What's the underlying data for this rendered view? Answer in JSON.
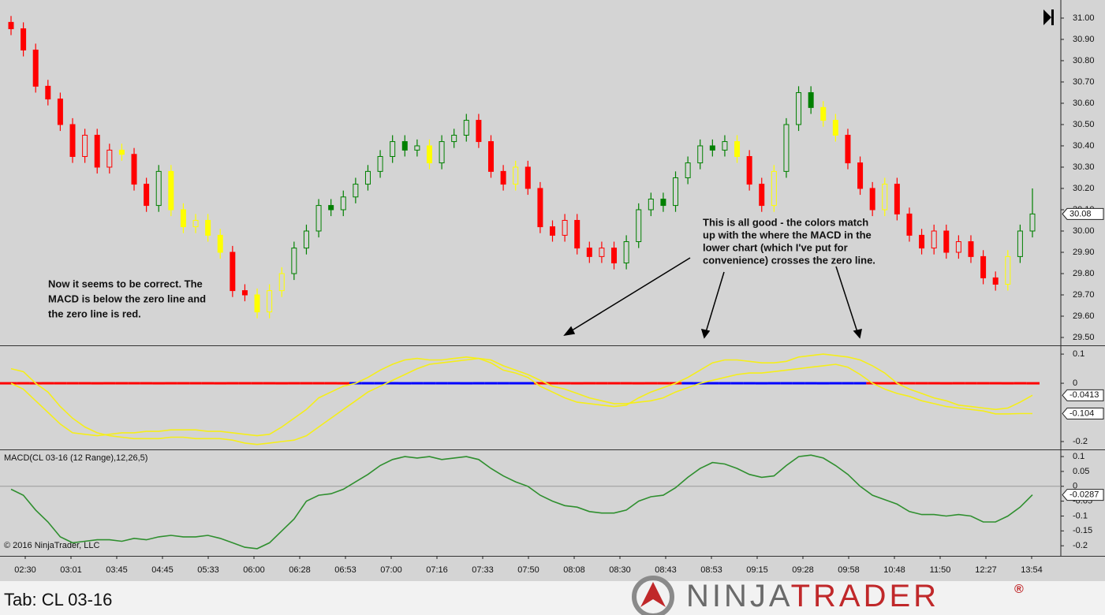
{
  "chart_data": [
    {
      "type": "candlestick",
      "open": [
        30.98,
        30.95,
        30.85,
        30.68,
        30.62,
        30.5,
        30.35,
        30.45,
        30.3,
        30.38,
        30.36,
        30.22,
        30.12,
        30.28,
        30.1,
        30.02,
        30.05,
        29.98,
        29.9,
        29.72,
        29.7,
        29.62,
        29.72,
        29.8,
        29.92,
        30.0,
        30.12,
        30.1,
        30.16,
        30.22,
        30.28,
        30.35,
        30.42,
        30.38,
        30.4,
        30.32,
        30.42,
        30.45,
        30.52,
        30.42,
        30.28,
        30.22,
        30.3,
        30.2,
        30.02,
        29.98,
        30.05,
        29.92,
        29.88,
        29.92,
        29.85,
        29.95,
        30.1,
        30.15,
        30.12,
        30.25,
        30.32,
        30.4,
        30.38,
        30.42,
        30.35,
        30.22,
        30.12,
        30.28,
        30.5,
        30.65,
        30.58,
        30.52,
        30.45,
        30.32,
        30.2,
        30.1,
        30.22,
        30.08,
        29.98,
        29.92,
        30.0,
        29.9,
        29.95,
        29.88,
        29.78,
        29.75,
        29.88,
        30.0
      ],
      "high": [
        31.01,
        30.98,
        30.88,
        30.71,
        30.65,
        30.53,
        30.48,
        30.48,
        30.41,
        30.41,
        30.39,
        30.25,
        30.31,
        30.31,
        30.13,
        30.08,
        30.08,
        30.01,
        29.93,
        29.75,
        29.73,
        29.75,
        29.83,
        29.95,
        30.03,
        30.15,
        30.15,
        30.19,
        30.25,
        30.31,
        30.38,
        30.45,
        30.45,
        30.43,
        30.43,
        30.45,
        30.48,
        30.55,
        30.55,
        30.45,
        30.31,
        30.33,
        30.33,
        30.23,
        30.05,
        30.08,
        30.08,
        29.95,
        29.95,
        29.95,
        29.98,
        30.13,
        30.18,
        30.18,
        30.28,
        30.35,
        30.43,
        30.43,
        30.45,
        30.45,
        30.38,
        30.25,
        30.31,
        30.53,
        30.68,
        30.68,
        30.61,
        30.55,
        30.48,
        30.35,
        30.23,
        30.25,
        30.25,
        30.11,
        30.01,
        30.03,
        30.03,
        29.98,
        29.98,
        29.91,
        29.81,
        29.91,
        30.03,
        30.2
      ],
      "low": [
        30.92,
        30.82,
        30.65,
        30.59,
        30.47,
        30.32,
        30.32,
        30.27,
        30.27,
        30.33,
        30.19,
        30.09,
        30.09,
        30.07,
        29.99,
        29.99,
        29.95,
        29.87,
        29.69,
        29.67,
        29.59,
        29.59,
        29.69,
        29.77,
        29.89,
        29.97,
        30.07,
        30.07,
        30.13,
        30.19,
        30.25,
        30.32,
        30.35,
        30.35,
        30.29,
        30.29,
        30.39,
        30.42,
        30.39,
        30.25,
        30.19,
        30.19,
        30.17,
        29.99,
        29.95,
        29.95,
        29.89,
        29.85,
        29.85,
        29.82,
        29.82,
        29.92,
        30.07,
        30.09,
        30.09,
        30.22,
        30.29,
        30.35,
        30.35,
        30.32,
        30.19,
        30.09,
        30.09,
        30.25,
        30.47,
        30.55,
        30.49,
        30.42,
        30.29,
        30.17,
        30.07,
        30.07,
        30.05,
        29.95,
        29.89,
        29.89,
        29.87,
        29.87,
        29.85,
        29.75,
        29.72,
        29.72,
        29.85,
        29.97
      ],
      "close": [
        30.95,
        30.85,
        30.68,
        30.62,
        30.5,
        30.35,
        30.45,
        30.3,
        30.38,
        30.36,
        30.22,
        30.12,
        30.28,
        30.1,
        30.02,
        30.05,
        29.98,
        29.9,
        29.72,
        29.7,
        29.62,
        29.72,
        29.8,
        29.92,
        30.0,
        30.12,
        30.1,
        30.16,
        30.22,
        30.28,
        30.35,
        30.42,
        30.38,
        30.4,
        30.32,
        30.42,
        30.45,
        30.52,
        30.42,
        30.28,
        30.22,
        30.3,
        30.2,
        30.02,
        29.98,
        30.05,
        29.92,
        29.88,
        29.92,
        29.85,
        29.95,
        30.1,
        30.15,
        30.12,
        30.25,
        30.32,
        30.4,
        30.38,
        30.42,
        30.35,
        30.22,
        30.12,
        30.28,
        30.5,
        30.65,
        30.58,
        30.52,
        30.45,
        30.32,
        30.2,
        30.1,
        30.22,
        30.08,
        29.98,
        29.92,
        30.0,
        29.9,
        29.95,
        29.88,
        29.78,
        29.75,
        29.88,
        30.0,
        30.08
      ],
      "colors": [
        "red",
        "red",
        "red",
        "red",
        "red",
        "red",
        "red",
        "red",
        "red",
        "yellow",
        "red",
        "red",
        "green",
        "yellow",
        "yellow",
        "yellow",
        "yellow",
        "yellow",
        "red",
        "red",
        "yellow",
        "yellow",
        "yellow",
        "green",
        "green",
        "green",
        "green",
        "green",
        "green",
        "green",
        "green",
        "green",
        "green",
        "green",
        "yellow",
        "green",
        "green",
        "green",
        "red",
        "red",
        "red",
        "yellow",
        "red",
        "red",
        "red",
        "red",
        "red",
        "red",
        "red",
        "red",
        "green",
        "green",
        "green",
        "green",
        "green",
        "green",
        "green",
        "green",
        "green",
        "yellow",
        "red",
        "red",
        "yellow",
        "green",
        "green",
        "green",
        "yellow",
        "yellow",
        "red",
        "red",
        "red",
        "yellow",
        "red",
        "red",
        "red",
        "red",
        "red",
        "red",
        "red",
        "red",
        "red",
        "yellow",
        "green",
        "green"
      ],
      "ylim": [
        29.463,
        31.085
      ],
      "yticks": [
        {
          "value": 29.5,
          "label": "29.50"
        },
        {
          "value": 29.6,
          "label": "29.60"
        },
        {
          "value": 29.7,
          "label": "29.70"
        },
        {
          "value": 29.8,
          "label": "29.80"
        },
        {
          "value": 29.9,
          "label": "29.90"
        },
        {
          "value": 30.0,
          "label": "30.00"
        },
        {
          "value": 30.1,
          "label": "30.10"
        },
        {
          "value": 30.2,
          "label": "30.20"
        },
        {
          "value": 30.3,
          "label": "30.30"
        },
        {
          "value": 30.4,
          "label": "30.40"
        },
        {
          "value": 30.5,
          "label": "30.50"
        },
        {
          "value": 30.6,
          "label": "30.60"
        },
        {
          "value": 30.7,
          "label": "30.70"
        },
        {
          "value": 30.8,
          "label": "30.80"
        },
        {
          "value": 30.9,
          "label": "30.90"
        },
        {
          "value": 31.0,
          "label": "31.00"
        }
      ],
      "annotations": [
        [
          "Now it seems to be correct.  The",
          "MACD is below the zero line and",
          "the zero line is red."
        ],
        [
          "This is all good - the colors match",
          "up with the where the MACD in the",
          "lower chart (which I've put for",
          "convenience) crosses the zero line."
        ]
      ]
    },
    {
      "type": "line",
      "series": [
        {
          "color": "#f5ee1a",
          "values": [
            0.05,
            0.04,
            0.0,
            -0.03,
            -0.08,
            -0.12,
            -0.15,
            -0.17,
            -0.18,
            -0.185,
            -0.19,
            -0.19,
            -0.19,
            -0.185,
            -0.185,
            -0.19,
            -0.19,
            -0.19,
            -0.195,
            -0.205,
            -0.21,
            -0.205,
            -0.2,
            -0.195,
            -0.18,
            -0.15,
            -0.12,
            -0.09,
            -0.06,
            -0.03,
            -0.01,
            0.01,
            0.03,
            0.05,
            0.065,
            0.07,
            0.075,
            0.08,
            0.085,
            0.08,
            0.06,
            0.045,
            0.03,
            0.01,
            -0.01,
            -0.02,
            -0.035,
            -0.05,
            -0.06,
            -0.07,
            -0.07,
            -0.065,
            -0.06,
            -0.05,
            -0.03,
            -0.015,
            0.0,
            0.01,
            0.02,
            0.03,
            0.035,
            0.035,
            0.04,
            0.045,
            0.05,
            0.055,
            0.06,
            0.065,
            0.055,
            0.03,
            0.0,
            -0.02,
            -0.035,
            -0.045,
            -0.06,
            -0.07,
            -0.08,
            -0.085,
            -0.09,
            -0.095,
            -0.105,
            -0.105,
            -0.104,
            -0.104
          ]
        },
        {
          "color": "#f5ee1a",
          "values": [
            0.0,
            -0.02,
            -0.06,
            -0.1,
            -0.14,
            -0.17,
            -0.175,
            -0.18,
            -0.175,
            -0.17,
            -0.17,
            -0.165,
            -0.165,
            -0.16,
            -0.16,
            -0.16,
            -0.165,
            -0.165,
            -0.17,
            -0.175,
            -0.18,
            -0.175,
            -0.15,
            -0.12,
            -0.09,
            -0.05,
            -0.03,
            -0.01,
            0.0,
            0.02,
            0.045,
            0.065,
            0.08,
            0.085,
            0.08,
            0.08,
            0.085,
            0.09,
            0.085,
            0.07,
            0.045,
            0.035,
            0.02,
            -0.01,
            -0.03,
            -0.05,
            -0.065,
            -0.07,
            -0.075,
            -0.08,
            -0.075,
            -0.05,
            -0.03,
            -0.015,
            0.0,
            0.02,
            0.045,
            0.07,
            0.08,
            0.08,
            0.075,
            0.07,
            0.07,
            0.075,
            0.09,
            0.095,
            0.1,
            0.095,
            0.09,
            0.08,
            0.06,
            0.035,
            0.0,
            -0.02,
            -0.035,
            -0.05,
            -0.06,
            -0.075,
            -0.08,
            -0.085,
            -0.09,
            -0.085,
            -0.065,
            -0.0413
          ]
        }
      ],
      "zero_line": {
        "above": "#0000ff",
        "below": "#ff0000"
      },
      "ylim": [
        -0.227,
        0.13
      ],
      "yticks": [
        0.1,
        0,
        -0.2
      ]
    },
    {
      "type": "line",
      "title": "MACD(CL 03-16 (12 Range),12,26,5)",
      "series": [
        {
          "color": "#2f8f2f",
          "values": [
            -0.01,
            -0.03,
            -0.08,
            -0.12,
            -0.17,
            -0.19,
            -0.185,
            -0.18,
            -0.18,
            -0.185,
            -0.175,
            -0.18,
            -0.17,
            -0.165,
            -0.17,
            -0.17,
            -0.165,
            -0.175,
            -0.19,
            -0.205,
            -0.21,
            -0.19,
            -0.15,
            -0.11,
            -0.05,
            -0.03,
            -0.025,
            -0.01,
            0.015,
            0.04,
            0.07,
            0.09,
            0.1,
            0.095,
            0.1,
            0.09,
            0.095,
            0.1,
            0.09,
            0.06,
            0.035,
            0.015,
            0.0,
            -0.03,
            -0.05,
            -0.065,
            -0.07,
            -0.085,
            -0.09,
            -0.09,
            -0.08,
            -0.05,
            -0.035,
            -0.03,
            -0.005,
            0.03,
            0.06,
            0.08,
            0.075,
            0.06,
            0.04,
            0.03,
            0.035,
            0.07,
            0.1,
            0.105,
            0.095,
            0.07,
            0.04,
            0.0,
            -0.03,
            -0.045,
            -0.06,
            -0.085,
            -0.095,
            -0.095,
            -0.1,
            -0.095,
            -0.1,
            -0.12,
            -0.12,
            -0.1,
            -0.07,
            -0.0287
          ]
        }
      ],
      "ylim": [
        -0.234,
        0.124
      ],
      "yticks": [
        0.1,
        0.05,
        0,
        -0.05,
        -0.1,
        -0.15,
        -0.2
      ]
    }
  ],
  "x_labels": [
    "02:30",
    "03:01",
    "03:45",
    "04:45",
    "05:33",
    "06:00",
    "06:28",
    "06:53",
    "07:00",
    "07:16",
    "07:33",
    "07:50",
    "08:08",
    "08:30",
    "08:43",
    "08:53",
    "09:15",
    "09:28",
    "09:58",
    "10:48",
    "11:50",
    "12:27",
    "13:54"
  ],
  "copyright": "© 2016 NinjaTrader, LLC",
  "tab": "Tab: CL 03-16",
  "logo": {
    "first": "NINJA",
    "second": "TRADER",
    "mark": "®"
  }
}
